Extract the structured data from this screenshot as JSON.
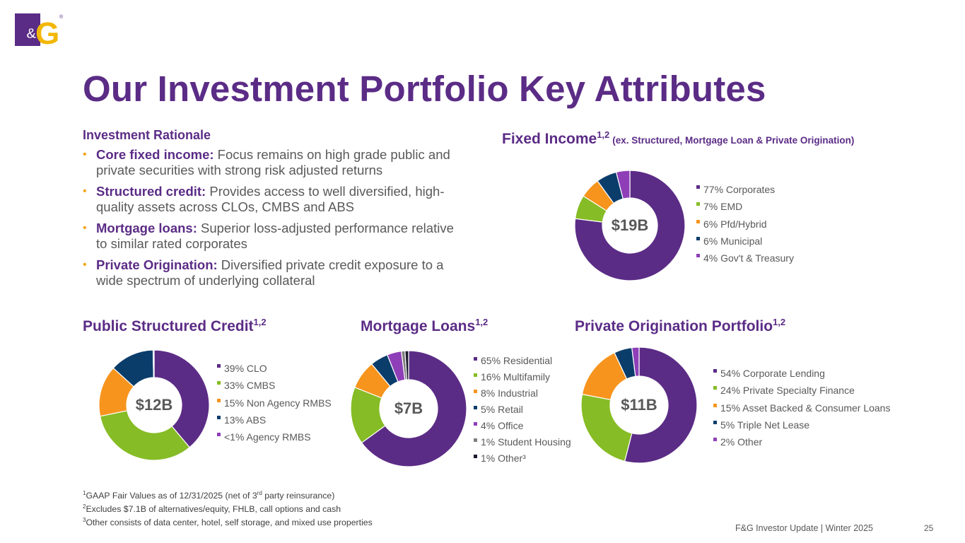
{
  "logo": {
    "text": "F&G",
    "registered": "®"
  },
  "title": "Our Investment Portfolio Key Attributes",
  "rationale": {
    "heading": "Investment Rationale",
    "bullet_glyph": "•",
    "items": [
      {
        "label": "Core fixed income:",
        "text": " Focus remains on high grade public and private securities with strong risk adjusted returns"
      },
      {
        "label": "Structured credit:",
        "text": " Provides access to well diversified, high-quality assets across CLOs, CMBS and ABS"
      },
      {
        "label": "Mortgage loans:",
        "text": " Superior loss-adjusted performance relative to similar rated corporates"
      },
      {
        "label": "Private Origination:",
        "text": " Diversified private credit exposure to a wide spectrum of underlying collateral"
      }
    ]
  },
  "colors": {
    "purple": "#5b2c86",
    "green": "#86bc25",
    "orange": "#f7941d",
    "navy": "#0b3d6b",
    "violet": "#8e3fb8",
    "gray": "#7f7f7f",
    "black": "#1a1a2e",
    "gold": "#f2b705"
  },
  "chart_data": [
    {
      "id": "fixed_income",
      "type": "pie",
      "title": "Fixed Income",
      "title_sup": "1,2",
      "subtitle": "(ex. Structured, Mortgage Loan & Private Origination)",
      "total_label": "$19B",
      "slices": [
        {
          "label": "77% Corporates",
          "value": 77,
          "color": "#5b2c86"
        },
        {
          "label": "7% EMD",
          "value": 7,
          "color": "#86bc25"
        },
        {
          "label": "6% Pfd/Hybrid",
          "value": 6,
          "color": "#f7941d"
        },
        {
          "label": "6% Municipal",
          "value": 6,
          "color": "#0b3d6b"
        },
        {
          "label": "4% Gov't & Treasury",
          "value": 4,
          "color": "#8e3fb8"
        }
      ]
    },
    {
      "id": "public_structured_credit",
      "type": "pie",
      "title": "Public Structured Credit",
      "title_sup": "1,2",
      "subtitle": "",
      "total_label": "$12B",
      "slices": [
        {
          "label": "39% CLO",
          "value": 39,
          "color": "#5b2c86"
        },
        {
          "label": "33% CMBS",
          "value": 33,
          "color": "#86bc25"
        },
        {
          "label": "15% Non Agency RMBS",
          "value": 15,
          "color": "#f7941d"
        },
        {
          "label": "13% ABS",
          "value": 13,
          "color": "#0b3d6b"
        },
        {
          "label": "<1% Agency RMBS",
          "value": 0.3,
          "color": "#8e3fb8"
        }
      ]
    },
    {
      "id": "mortgage_loans",
      "type": "pie",
      "title": "Mortgage Loans",
      "title_sup": "1,2",
      "subtitle": "",
      "total_label": "$7B",
      "slices": [
        {
          "label": "65% Residential",
          "value": 65,
          "color": "#5b2c86"
        },
        {
          "label": "16% Multifamily",
          "value": 16,
          "color": "#86bc25"
        },
        {
          "label": "8% Industrial",
          "value": 8,
          "color": "#f7941d"
        },
        {
          "label": "5% Retail",
          "value": 5,
          "color": "#0b3d6b"
        },
        {
          "label": "4% Office",
          "value": 4,
          "color": "#8e3fb8"
        },
        {
          "label": "1% Student Housing",
          "value": 1,
          "color": "#7f7f7f"
        },
        {
          "label": "1% Other³",
          "value": 1,
          "color": "#1a1a2e"
        }
      ]
    },
    {
      "id": "private_origination",
      "type": "pie",
      "title": "Private Origination Portfolio",
      "title_sup": "1,2",
      "subtitle": "",
      "total_label": "$11B",
      "slices": [
        {
          "label": "54% Corporate Lending",
          "value": 54,
          "color": "#5b2c86"
        },
        {
          "label": "24% Private Specialty Finance",
          "value": 24,
          "color": "#86bc25"
        },
        {
          "label": "15% Asset Backed & Consumer Loans",
          "value": 15,
          "color": "#f7941d"
        },
        {
          "label": "5% Triple Net Lease",
          "value": 5,
          "color": "#0b3d6b"
        },
        {
          "label": "2% Other",
          "value": 2,
          "color": "#8e3fb8"
        }
      ]
    }
  ],
  "footnotes": [
    {
      "sup": "1",
      "text": "GAAP Fair Values as of 12/31/2025 (net of 3",
      "sup2": "rd",
      "text2": " party reinsurance)"
    },
    {
      "sup": "2",
      "text": "Excludes $7.1B of alternatives/equity, FHLB, call options and cash",
      "sup2": "",
      "text2": ""
    },
    {
      "sup": "3",
      "text": "Other consists of data center, hotel, self storage, and mixed use properties",
      "sup2": "",
      "text2": ""
    }
  ],
  "footer": "F&G Investor Update |  Winter 2025",
  "page_number": "25"
}
